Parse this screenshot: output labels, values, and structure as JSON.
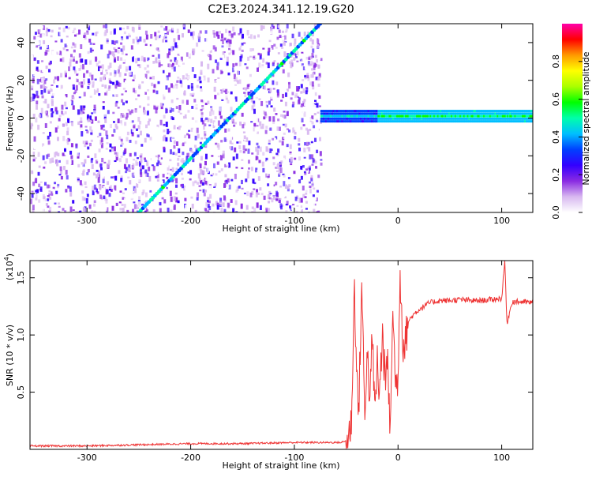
{
  "title": "C2E3.2024.341.12.19.G20",
  "chart_data": [
    {
      "type": "heatmap",
      "title": "C2E3.2024.341.12.19.G20",
      "xlabel": "Height of straight line (km)",
      "ylabel": "Frequency (Hz)",
      "xlim": [
        -355,
        130
      ],
      "ylim": [
        -50,
        50
      ],
      "x_ticks": [
        -300,
        -200,
        -100,
        0,
        100
      ],
      "x_tick_labels": [
        "-300",
        "-200",
        "-100",
        "0",
        "100"
      ],
      "y_ticks": [
        -40,
        -20,
        0,
        20,
        40
      ],
      "y_tick_labels": [
        "-40",
        "-20",
        "0",
        "20",
        "40"
      ],
      "colorbar": {
        "label": "Normalized spectral amplitude",
        "range": [
          0,
          1
        ],
        "ticks": [
          0.0,
          0.2,
          0.4,
          0.6,
          0.8
        ],
        "tick_labels": [
          "0.0",
          "0.2",
          "0.4",
          "0.6",
          "0.8"
        ],
        "colors": [
          "#ffffff",
          "#d8b8f0",
          "#8a2be2",
          "#3300ff",
          "#0040ff",
          "#00bfff",
          "#00ffaa",
          "#00ff00",
          "#aaff00",
          "#ffff00",
          "#ff9900",
          "#ff0000",
          "#ff00aa"
        ]
      },
      "features": {
        "noise_region_x": [
          -355,
          -75
        ],
        "diagonal_line": {
          "x": [
            -250,
            -75
          ],
          "y": [
            -50,
            50
          ]
        },
        "signal_band": {
          "x": [
            -75,
            130
          ],
          "y_center": 1,
          "y_halfwidth": 3
        }
      }
    },
    {
      "type": "line",
      "xlabel": "Height of straight line (km)",
      "ylabel": "SNR (10 * v/v)",
      "multiplier_label": "(x10",
      "multiplier_exponent": "4",
      "multiplier_close": ")",
      "xlim": [
        -355,
        130
      ],
      "ylim": [
        0,
        1.65
      ],
      "x_ticks": [
        -300,
        -200,
        -100,
        0,
        100
      ],
      "x_tick_labels": [
        "-300",
        "-200",
        "-100",
        "0",
        "100"
      ],
      "y_ticks": [
        0.5,
        1.0,
        1.5
      ],
      "y_tick_labels": [
        "0.5",
        "1.0",
        "1.5"
      ],
      "series": [
        {
          "color": "#ee3333",
          "x": [
            -355,
            -300,
            -250,
            -200,
            -150,
            -100,
            -75,
            -55,
            -48,
            -45,
            -42,
            -40,
            -38,
            -35,
            -32,
            -30,
            -27,
            -25,
            -22,
            -20,
            -18,
            -15,
            -12,
            -10,
            -8,
            -5,
            -2,
            0,
            2,
            5,
            8,
            10,
            15,
            20,
            25,
            30,
            40,
            50,
            60,
            70,
            80,
            90,
            100,
            103,
            105,
            110,
            120,
            130
          ],
          "y": [
            0.03,
            0.03,
            0.04,
            0.05,
            0.05,
            0.06,
            0.06,
            0.06,
            0.08,
            0.25,
            1.42,
            0.7,
            0.3,
            1.45,
            0.25,
            0.9,
            0.4,
            1.0,
            0.3,
            0.8,
            0.45,
            1.0,
            0.55,
            0.85,
            0.15,
            1.15,
            0.55,
            0.65,
            1.55,
            0.9,
            1.0,
            1.12,
            1.18,
            1.22,
            1.25,
            1.28,
            1.3,
            1.3,
            1.31,
            1.3,
            1.3,
            1.31,
            1.32,
            1.65,
            1.1,
            1.29,
            1.29,
            1.28
          ]
        }
      ]
    }
  ]
}
